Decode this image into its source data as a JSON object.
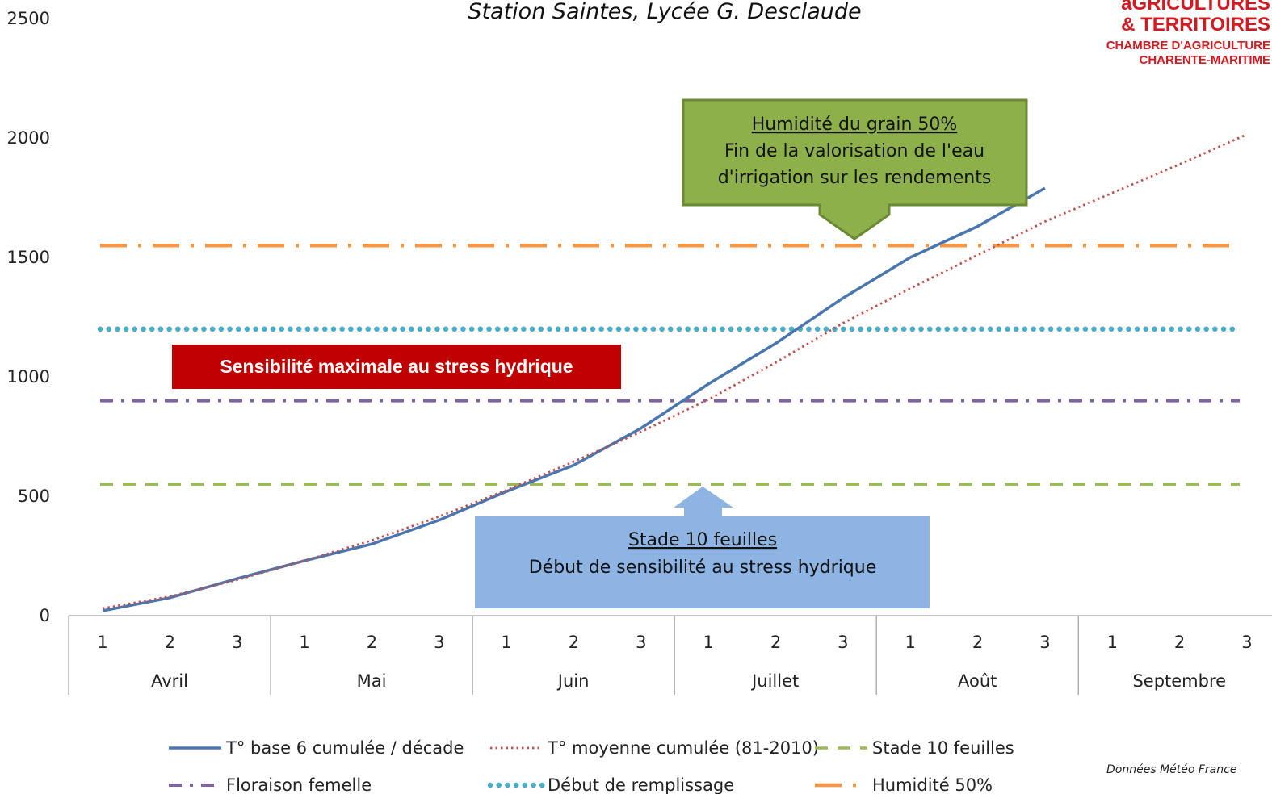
{
  "chart_data": {
    "type": "line",
    "title": "Station Saintes, Lycée G. Desclaude",
    "ylim": [
      0,
      2500
    ],
    "yticks": [
      "0",
      "500",
      "1000",
      "1500",
      "2000",
      "2500"
    ],
    "decade_labels": [
      "1",
      "2",
      "3",
      "1",
      "2",
      "3",
      "1",
      "2",
      "3",
      "1",
      "2",
      "3",
      "1",
      "2",
      "3",
      "1",
      "2",
      "3"
    ],
    "months": [
      "Avril",
      "Mai",
      "Juin",
      "Juillet",
      "Août",
      "Septembre"
    ],
    "series": [
      {
        "name": "T° base 6 cumulée / décade",
        "color": "#4a76b0",
        "style": "solid",
        "values": [
          20,
          75,
          155,
          230,
          300,
          400,
          520,
          630,
          785,
          970,
          1140,
          1330,
          1500,
          1630,
          1790
        ]
      },
      {
        "name": "T° moyenne cumulée (81-2010)",
        "color": "#c0504d",
        "style": "dotted",
        "values": [
          30,
          80,
          150,
          230,
          315,
          415,
          525,
          645,
          770,
          905,
          1060,
          1225,
          1370,
          1510,
          1650,
          1770,
          1890,
          2015
        ]
      }
    ],
    "thresholds": [
      {
        "name": "Stade 10 feuilles",
        "value": 550,
        "color": "#9bbb59",
        "style": "dashed"
      },
      {
        "name": "Floraison femelle",
        "value": 900,
        "color": "#8064a2",
        "style": "dash-dot"
      },
      {
        "name": "Début de remplissage",
        "value": 1200,
        "color": "#4bacc6",
        "style": "round-dot"
      },
      {
        "name": "Humidité 50%",
        "value": 1550,
        "color": "#f79646",
        "style": "long-dash-dot"
      }
    ],
    "annotations": {
      "stress_band": "Sensibilité maximale au stress hydrique",
      "humidity_box": {
        "title": "Humidité du grain 50%",
        "line1": "Fin de la valorisation de l'eau",
        "line2": "d'irrigation sur les rendements"
      },
      "ten_leaves_box": {
        "title": "Stade 10 feuilles",
        "line1": "Début de sensibilité au stress hydrique"
      }
    },
    "source": "Données Météo France",
    "legend_position": "bottom"
  },
  "logo": {
    "line1": "aGRICULTURES",
    "line2": "& TERRITOIRES",
    "line3": "CHAMBRE D'AGRICULTURE",
    "line4": "CHARENTE-MARITIME"
  }
}
